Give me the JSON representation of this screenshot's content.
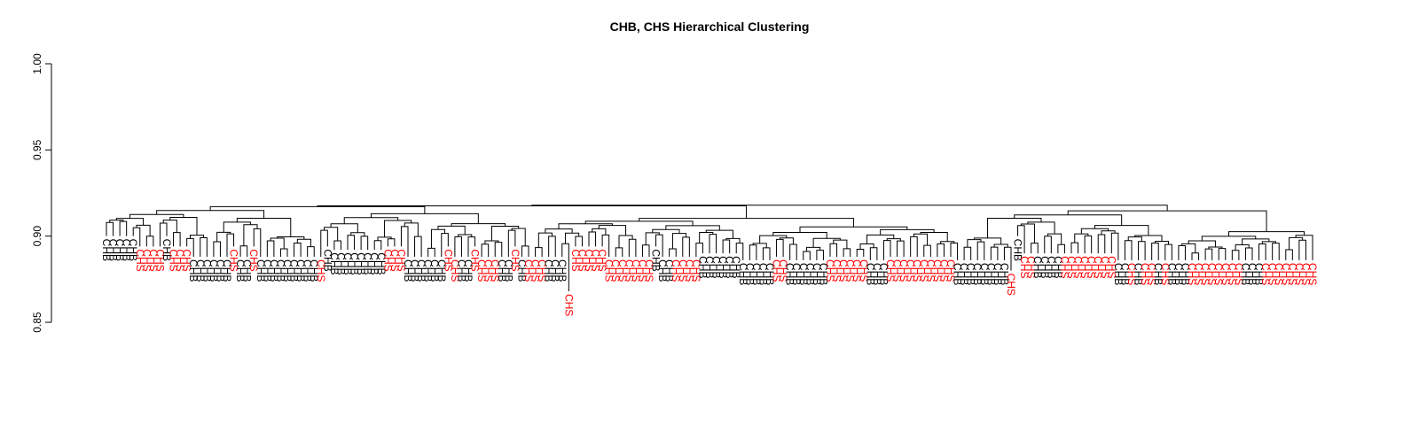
{
  "chart_data": {
    "type": "dendrogram",
    "title": "CHB, CHS Hierarchical Clustering",
    "xlabel": "",
    "ylabel": "",
    "ylim": [
      0.85,
      1.0
    ],
    "y_ticks": [
      "0.85",
      "0.90",
      "0.95",
      "1.00"
    ],
    "y_tick_values": [
      0.85,
      0.9,
      0.95,
      1.0
    ],
    "series": [
      {
        "name": "CHB",
        "color": "#000000"
      },
      {
        "name": "CHS",
        "color": "#ff0000"
      }
    ],
    "leaves": [
      "CHB",
      "CHB",
      "CHB",
      "CHB",
      "CHB",
      "CHS",
      "CHS",
      "CHS",
      "CHS",
      "CHB",
      "CHS",
      "CHS",
      "CHS",
      "CHB",
      "CHB",
      "CHB",
      "CHB",
      "CHB",
      "CHB",
      "CHS",
      "CHB",
      "CHB",
      "CHS",
      "CHB",
      "CHB",
      "CHB",
      "CHB",
      "CHB",
      "CHB",
      "CHB",
      "CHB",
      "CHB",
      "CHS",
      "CHB",
      "CHB",
      "CHB",
      "CHB",
      "CHB",
      "CHB",
      "CHB",
      "CHB",
      "CHB",
      "CHS",
      "CHS",
      "CHS",
      "CHB",
      "CHB",
      "CHB",
      "CHB",
      "CHB",
      "CHB",
      "CHS",
      "CHS",
      "CHB",
      "CHB",
      "CHS",
      "CHS",
      "CHS",
      "CHS",
      "CHB",
      "CHB",
      "CHS",
      "CHB",
      "CHS",
      "CHS",
      "CHS",
      "CHB",
      "CHB",
      "CHB",
      "CHS",
      "CHS",
      "CHS",
      "CHS",
      "CHS",
      "CHS",
      "CHS",
      "CHS",
      "CHS",
      "CHS",
      "CHS",
      "CHS",
      "CHS",
      "CHB",
      "CHB",
      "CHB",
      "CHS",
      "CHS",
      "CHS",
      "CHS",
      "CHB",
      "CHB",
      "CHB",
      "CHB",
      "CHB",
      "CHB",
      "CHB",
      "CHB",
      "CHB",
      "CHB",
      "CHB",
      "CHS",
      "CHS",
      "CHB",
      "CHB",
      "CHB",
      "CHB",
      "CHB",
      "CHB",
      "CHS",
      "CHS",
      "CHS",
      "CHS",
      "CHS",
      "CHS",
      "CHB",
      "CHB",
      "CHB",
      "CHS",
      "CHS",
      "CHS",
      "CHS",
      "CHS",
      "CHS",
      "CHS",
      "CHS",
      "CHS",
      "CHS",
      "CHB",
      "CHB",
      "CHB",
      "CHB",
      "CHB",
      "CHB",
      "CHB",
      "CHB",
      "CHS",
      "CHB",
      "CHS",
      "CHS",
      "CHB",
      "CHB",
      "CHB",
      "CHB",
      "CHS",
      "CHS",
      "CHS",
      "CHS",
      "CHS",
      "CHS",
      "CHS",
      "CHS",
      "CHB",
      "CHB",
      "CHS",
      "CHB",
      "CHS",
      "CHS",
      "CHB",
      "CHS",
      "CHB",
      "CHB",
      "CHB",
      "CHS",
      "CHS",
      "CHS",
      "CHS",
      "CHS",
      "CHS",
      "CHS",
      "CHS",
      "CHB",
      "CHB",
      "CHB",
      "CHS",
      "CHS",
      "CHS",
      "CHS",
      "CHS",
      "CHS",
      "CHS",
      "CHS"
    ],
    "heights": [
      0.9,
      0.9,
      0.9,
      0.9,
      0.9,
      0.894,
      0.894,
      0.894,
      0.894,
      0.9,
      0.894,
      0.894,
      0.894,
      0.888,
      0.888,
      0.888,
      0.888,
      0.888,
      0.888,
      0.894,
      0.888,
      0.888,
      0.894,
      0.888,
      0.888,
      0.888,
      0.888,
      0.888,
      0.888,
      0.888,
      0.888,
      0.888,
      0.888,
      0.894,
      0.892,
      0.892,
      0.892,
      0.892,
      0.892,
      0.892,
      0.892,
      0.892,
      0.894,
      0.894,
      0.894,
      0.888,
      0.888,
      0.888,
      0.888,
      0.888,
      0.888,
      0.894,
      0.888,
      0.888,
      0.888,
      0.894,
      0.888,
      0.888,
      0.888,
      0.888,
      0.888,
      0.894,
      0.888,
      0.888,
      0.888,
      0.888,
      0.888,
      0.888,
      0.888,
      0.868,
      0.894,
      0.894,
      0.894,
      0.894,
      0.894,
      0.888,
      0.888,
      0.888,
      0.888,
      0.888,
      0.888,
      0.888,
      0.894,
      0.888,
      0.888,
      0.888,
      0.888,
      0.888,
      0.888,
      0.89,
      0.89,
      0.89,
      0.89,
      0.89,
      0.89,
      0.886,
      0.886,
      0.886,
      0.886,
      0.886,
      0.888,
      0.888,
      0.886,
      0.886,
      0.886,
      0.886,
      0.886,
      0.886,
      0.888,
      0.888,
      0.888,
      0.888,
      0.888,
      0.888,
      0.886,
      0.886,
      0.886,
      0.888,
      0.888,
      0.888,
      0.888,
      0.888,
      0.888,
      0.888,
      0.888,
      0.888,
      0.888,
      0.886,
      0.886,
      0.886,
      0.886,
      0.886,
      0.886,
      0.886,
      0.886,
      0.88,
      0.9,
      0.89,
      0.89,
      0.89,
      0.89,
      0.89,
      0.89,
      0.89,
      0.89,
      0.89,
      0.89,
      0.89,
      0.89,
      0.89,
      0.89,
      0.886,
      0.886,
      0.886,
      0.886,
      0.886,
      0.886,
      0.886,
      0.886,
      0.886,
      0.886,
      0.886,
      0.886,
      0.886,
      0.886,
      0.886,
      0.886,
      0.886,
      0.886,
      0.886,
      0.886,
      0.886,
      0.886,
      0.886,
      0.886,
      0.886,
      0.886,
      0.886,
      0.886,
      0.886,
      0.886
    ]
  }
}
